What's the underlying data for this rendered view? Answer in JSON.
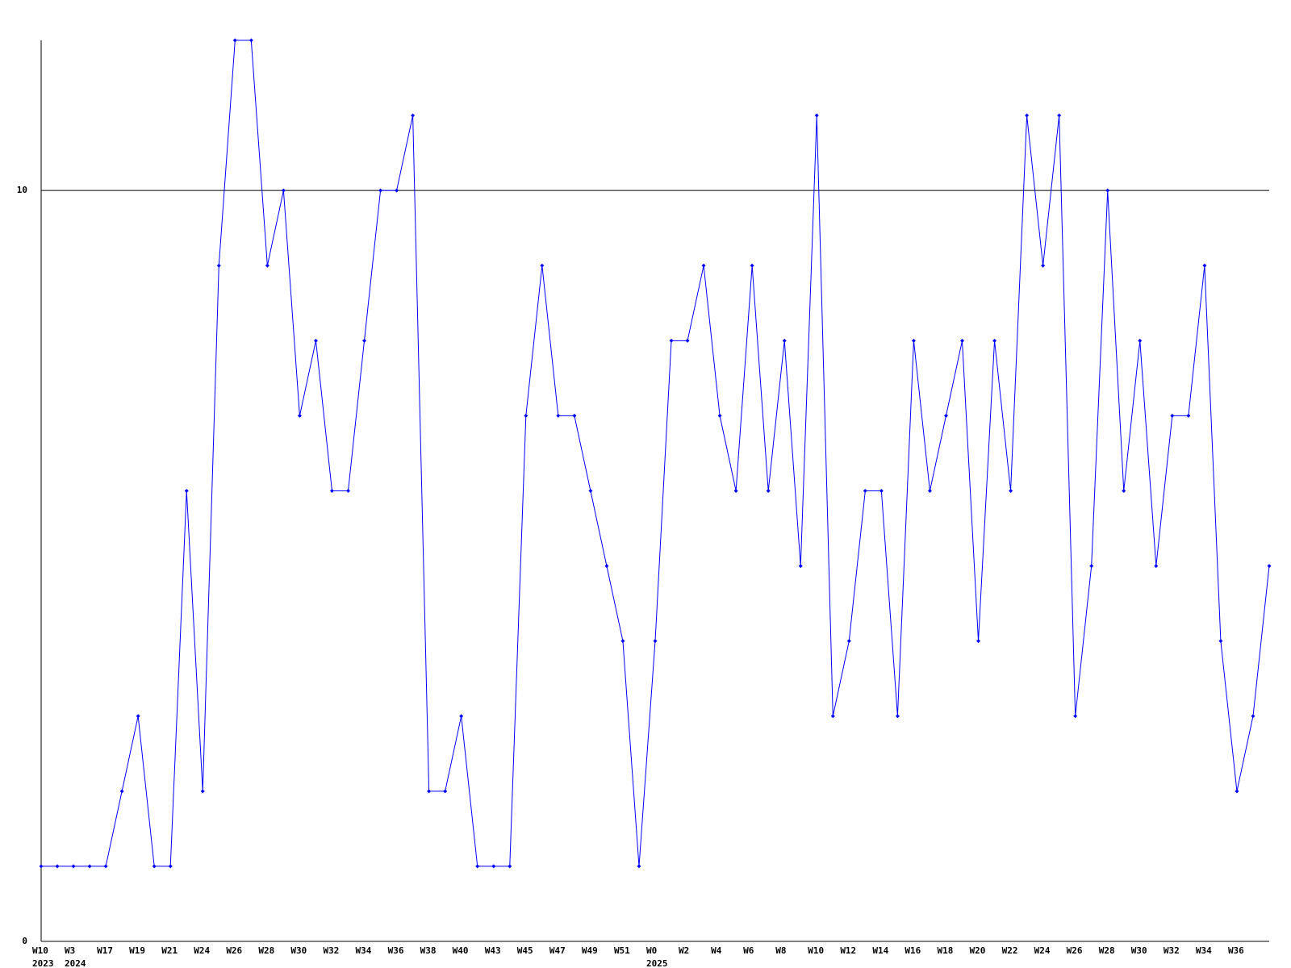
{
  "chart_data": {
    "type": "line",
    "categories": [
      "W10",
      null,
      "W3",
      null,
      "W17",
      null,
      "W19",
      null,
      "W21",
      null,
      "W24",
      null,
      "W26",
      null,
      "W28",
      null,
      "W30",
      null,
      "W32",
      null,
      "W34",
      null,
      "W36",
      null,
      "W38",
      null,
      "W40",
      null,
      "W43",
      null,
      "W45",
      null,
      "W47",
      null,
      "W49",
      null,
      "W51",
      null,
      "W0",
      null,
      "W2",
      null,
      "W4",
      null,
      "W6",
      null,
      "W8",
      null,
      "W10",
      null,
      "W12",
      null,
      "W14",
      null,
      "W16",
      null,
      "W18",
      null,
      "W20",
      null,
      "W22",
      null,
      "W24",
      null,
      "W26",
      null,
      "W28",
      null,
      "W30",
      null,
      "W32",
      null,
      "W34",
      null,
      "W36",
      null,
      null
    ],
    "year_labels": [
      "2023",
      null,
      "2024",
      null,
      null,
      null,
      null,
      null,
      null,
      null,
      null,
      null,
      null,
      null,
      null,
      null,
      null,
      null,
      null,
      null,
      null,
      null,
      null,
      null,
      null,
      null,
      null,
      null,
      null,
      null,
      null,
      null,
      null,
      null,
      null,
      null,
      null,
      null,
      "2025",
      null,
      null,
      null,
      null,
      null,
      null,
      null,
      null,
      null,
      null,
      null,
      null,
      null,
      null,
      null,
      null,
      null,
      null,
      null,
      null,
      null,
      null,
      null,
      null,
      null,
      null,
      null,
      null,
      null,
      null,
      null,
      null,
      null,
      null,
      null,
      null,
      null,
      null
    ],
    "series": [
      {
        "color": "#0000ff",
        "values": [
          1,
          1,
          1,
          1,
          1,
          2,
          3,
          1,
          1,
          6,
          2,
          9,
          12,
          12,
          9,
          10,
          7,
          8,
          6,
          6,
          8,
          10,
          10,
          11,
          2,
          2,
          3,
          1,
          1,
          1,
          7,
          9,
          7,
          7,
          6,
          5,
          4,
          1,
          4,
          8,
          8,
          9,
          7,
          6,
          9,
          6,
          8,
          5,
          11,
          3,
          4,
          6,
          6,
          3,
          8,
          6,
          7,
          8,
          4,
          8,
          6,
          11,
          9,
          11,
          3,
          5,
          10,
          6,
          8,
          5,
          7,
          7,
          9,
          4,
          2,
          3,
          5
        ]
      }
    ],
    "ylim": [
      0,
      12
    ],
    "yticks": [
      0,
      10
    ],
    "grid": true
  }
}
